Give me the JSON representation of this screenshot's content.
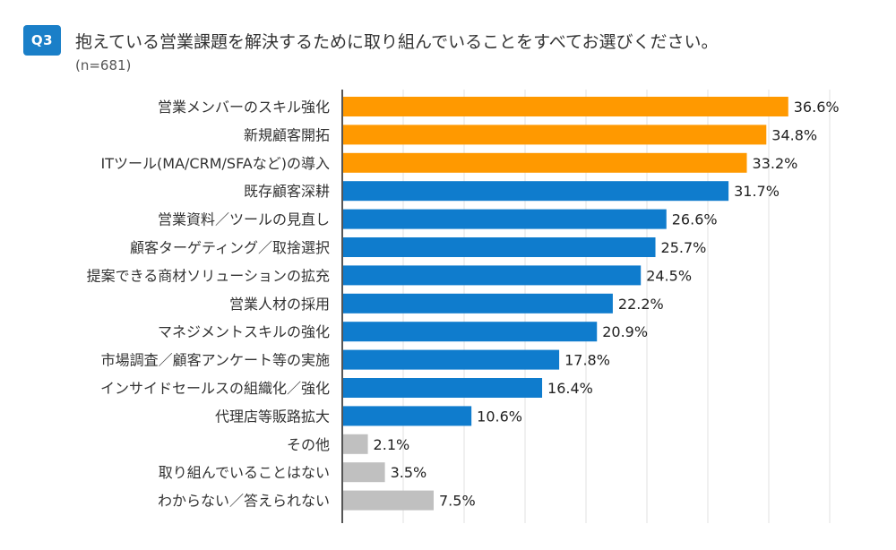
{
  "header": {
    "badge": "Q3",
    "title": "抱えている営業課題を解決するために取り組んでいることをすべてお選びください。",
    "sample": "(n=681)"
  },
  "colors": {
    "top": "#ff9900",
    "main": "#0f7ccd",
    "other": "#c0c0c0",
    "axis": "#555555",
    "grid": "#e2e2e2"
  },
  "chart_data": {
    "type": "bar",
    "orientation": "horizontal",
    "title": "抱えている営業課題を解決するために取り組んでいることをすべてお選びください。",
    "xlabel": "",
    "ylabel": "",
    "xlim": [
      0,
      40
    ],
    "grid": true,
    "value_suffix": "%",
    "categories": [
      "営業メンバーのスキル強化",
      "新規顧客開拓",
      "ITツール(MA/CRM/SFAなど)の導入",
      "既存顧客深耕",
      "営業資料／ツールの見直し",
      "顧客ターゲティング／取捨選択",
      "提案できる商材ソリューションの拡充",
      "営業人材の採用",
      "マネジメントスキルの強化",
      "市場調査／顧客アンケート等の実施",
      "インサイドセールスの組織化／強化",
      "代理店等販路拡大",
      "その他",
      "取り組んでいることはない",
      "わからない／答えられない"
    ],
    "values": [
      36.6,
      34.8,
      33.2,
      31.7,
      26.6,
      25.7,
      24.5,
      22.2,
      20.9,
      17.8,
      16.4,
      10.6,
      2.1,
      3.5,
      7.5
    ],
    "labels": [
      "36.6%",
      "34.8%",
      "33.2%",
      "31.7%",
      "26.6%",
      "25.7%",
      "24.5%",
      "22.2%",
      "20.9%",
      "17.8%",
      "16.4%",
      "10.6%",
      "2.1%",
      "3.5%",
      "7.5%"
    ],
    "color_groups": [
      "top",
      "top",
      "top",
      "main",
      "main",
      "main",
      "main",
      "main",
      "main",
      "main",
      "main",
      "main",
      "other",
      "other",
      "other"
    ]
  }
}
